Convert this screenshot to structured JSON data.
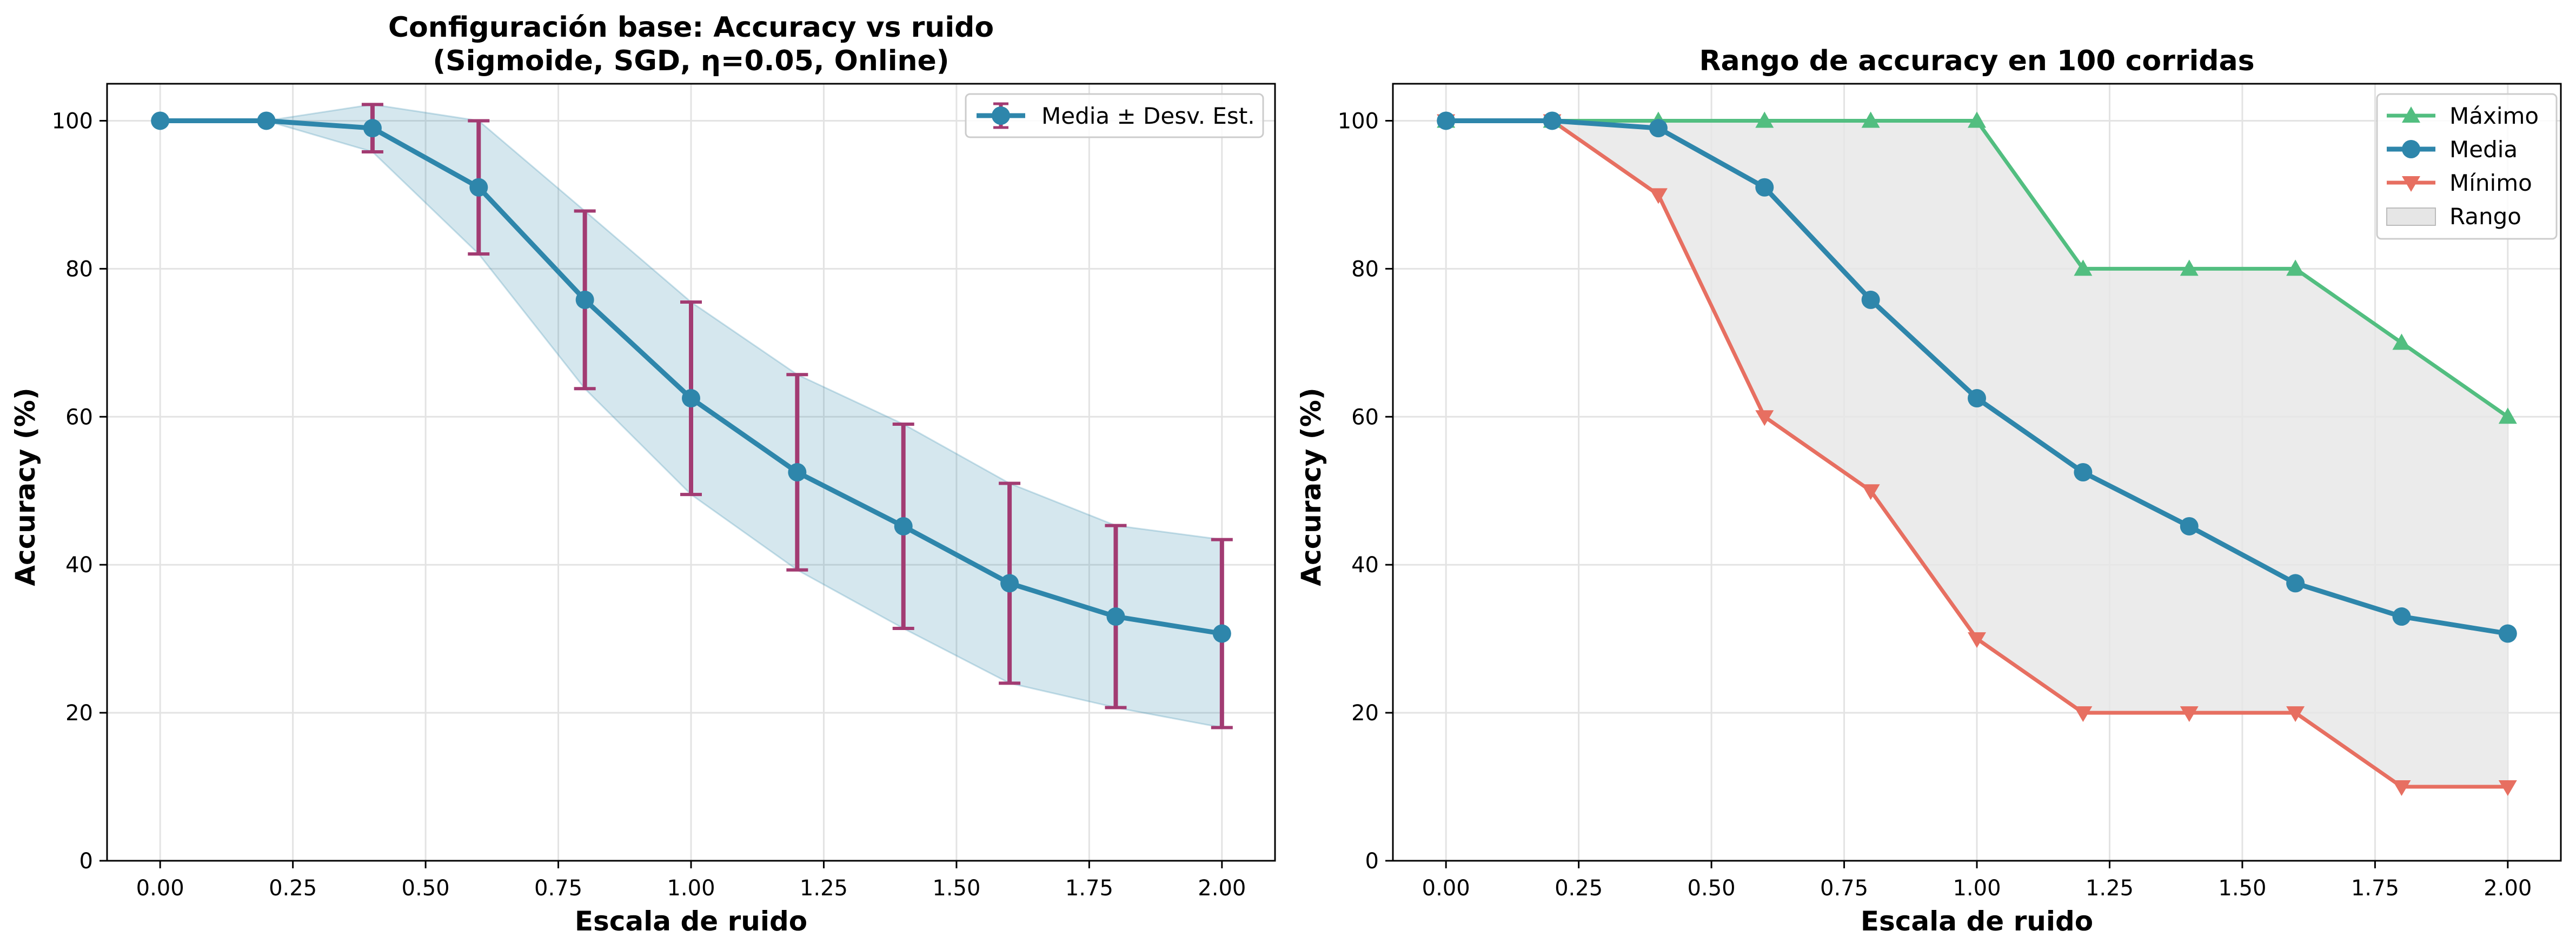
{
  "chart_data": [
    {
      "type": "line",
      "title_line1": "Configuración base: Accuracy vs ruido",
      "title_line2": "(Sigmoide, SGD, η=0.05, Online)",
      "xlabel": "Escala de ruido",
      "ylabel": "Accuracy (%)",
      "xlim": [
        -0.1,
        2.1
      ],
      "ylim": [
        0,
        105
      ],
      "xticks": [
        0.0,
        0.25,
        0.5,
        0.75,
        1.0,
        1.25,
        1.5,
        1.75,
        2.0
      ],
      "xtick_labels": [
        "0.00",
        "0.25",
        "0.50",
        "0.75",
        "1.00",
        "1.25",
        "1.50",
        "1.75",
        "2.00"
      ],
      "yticks": [
        0,
        20,
        40,
        60,
        80,
        100
      ],
      "ytick_labels": [
        "0",
        "20",
        "40",
        "60",
        "80",
        "100"
      ],
      "grid": true,
      "legend_position": "top-right",
      "x": [
        0.0,
        0.2,
        0.4,
        0.6,
        0.8,
        1.0,
        1.2,
        1.4,
        1.6,
        1.8,
        2.0
      ],
      "series": [
        {
          "name": "Media ± Desv. Est.",
          "values": [
            100,
            100,
            99,
            91,
            75.8,
            62.5,
            52.5,
            45.2,
            37.5,
            33,
            30.7
          ],
          "std": [
            0,
            0,
            3.2,
            9,
            12,
            13,
            13.2,
            13.8,
            13.5,
            12.3,
            12.7
          ],
          "color": "#2e86ab",
          "errorbar_color": "#a23b72",
          "band_color": "#2e86ab"
        }
      ]
    },
    {
      "type": "line",
      "title": "Rango de accuracy en 100 corridas",
      "xlabel": "Escala de ruido",
      "ylabel": "Accuracy (%)",
      "xlim": [
        -0.1,
        2.1
      ],
      "ylim": [
        0,
        105
      ],
      "xticks": [
        0.0,
        0.25,
        0.5,
        0.75,
        1.0,
        1.25,
        1.5,
        1.75,
        2.0
      ],
      "xtick_labels": [
        "0.00",
        "0.25",
        "0.50",
        "0.75",
        "1.00",
        "1.25",
        "1.50",
        "1.75",
        "2.00"
      ],
      "yticks": [
        0,
        20,
        40,
        60,
        80,
        100
      ],
      "ytick_labels": [
        "0",
        "20",
        "40",
        "60",
        "80",
        "100"
      ],
      "grid": true,
      "legend_position": "top-right",
      "x": [
        0.0,
        0.2,
        0.4,
        0.6,
        0.8,
        1.0,
        1.2,
        1.4,
        1.6,
        1.8,
        2.0
      ],
      "series": [
        {
          "name": "Máximo",
          "values": [
            100,
            100,
            100,
            100,
            100,
            100,
            80,
            80,
            80,
            70,
            60
          ],
          "color": "#52be80",
          "marker": "triangle-up"
        },
        {
          "name": "Media",
          "values": [
            100,
            100,
            99,
            91,
            75.8,
            62.5,
            52.5,
            45.2,
            37.5,
            33,
            30.7
          ],
          "color": "#2e86ab",
          "marker": "circle"
        },
        {
          "name": "Mínimo",
          "values": [
            100,
            100,
            90,
            60,
            50,
            30,
            20,
            20,
            20,
            10,
            10
          ],
          "color": "#e76f61",
          "marker": "triangle-down"
        }
      ],
      "range_fill": {
        "name": "Rango",
        "color": "#e6e6e6"
      }
    }
  ]
}
